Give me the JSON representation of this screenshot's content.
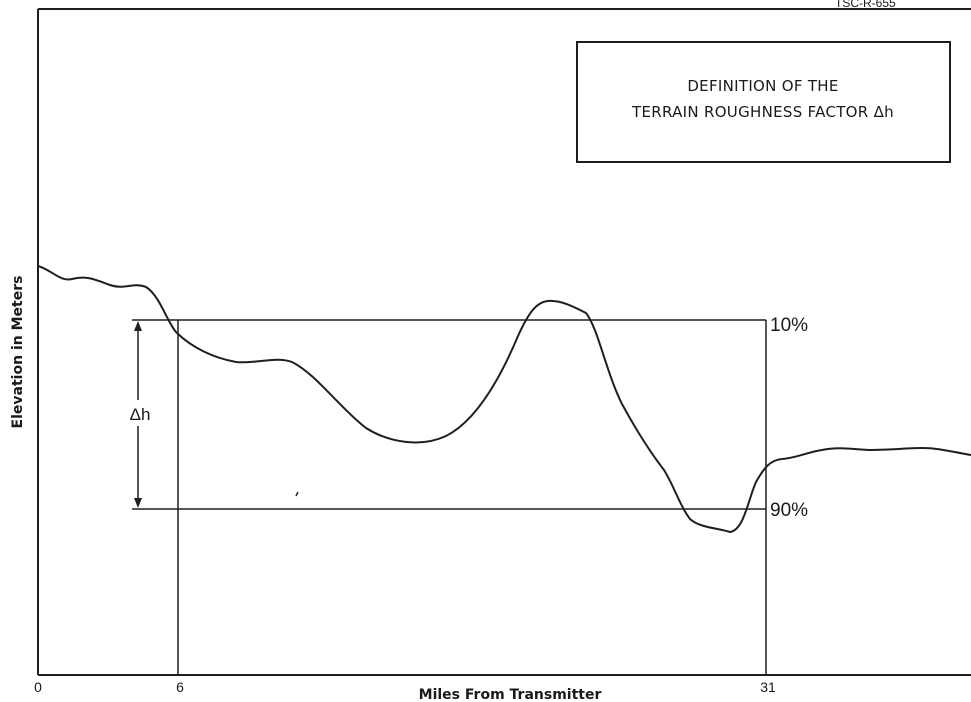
{
  "header_fragment": "TSC-R-655",
  "title_box": {
    "line1": "DEFINITION OF THE",
    "line2": "TERRAIN ROUGHNESS FACTOR Δh"
  },
  "y_axis_label": "Elevation in Meters",
  "x_axis_label": "Miles From Transmitter",
  "x_ticks": [
    "0",
    "6",
    "31"
  ],
  "percent_labels": {
    "upper": "10%",
    "lower": "90%"
  },
  "delta_label": "Δh"
}
